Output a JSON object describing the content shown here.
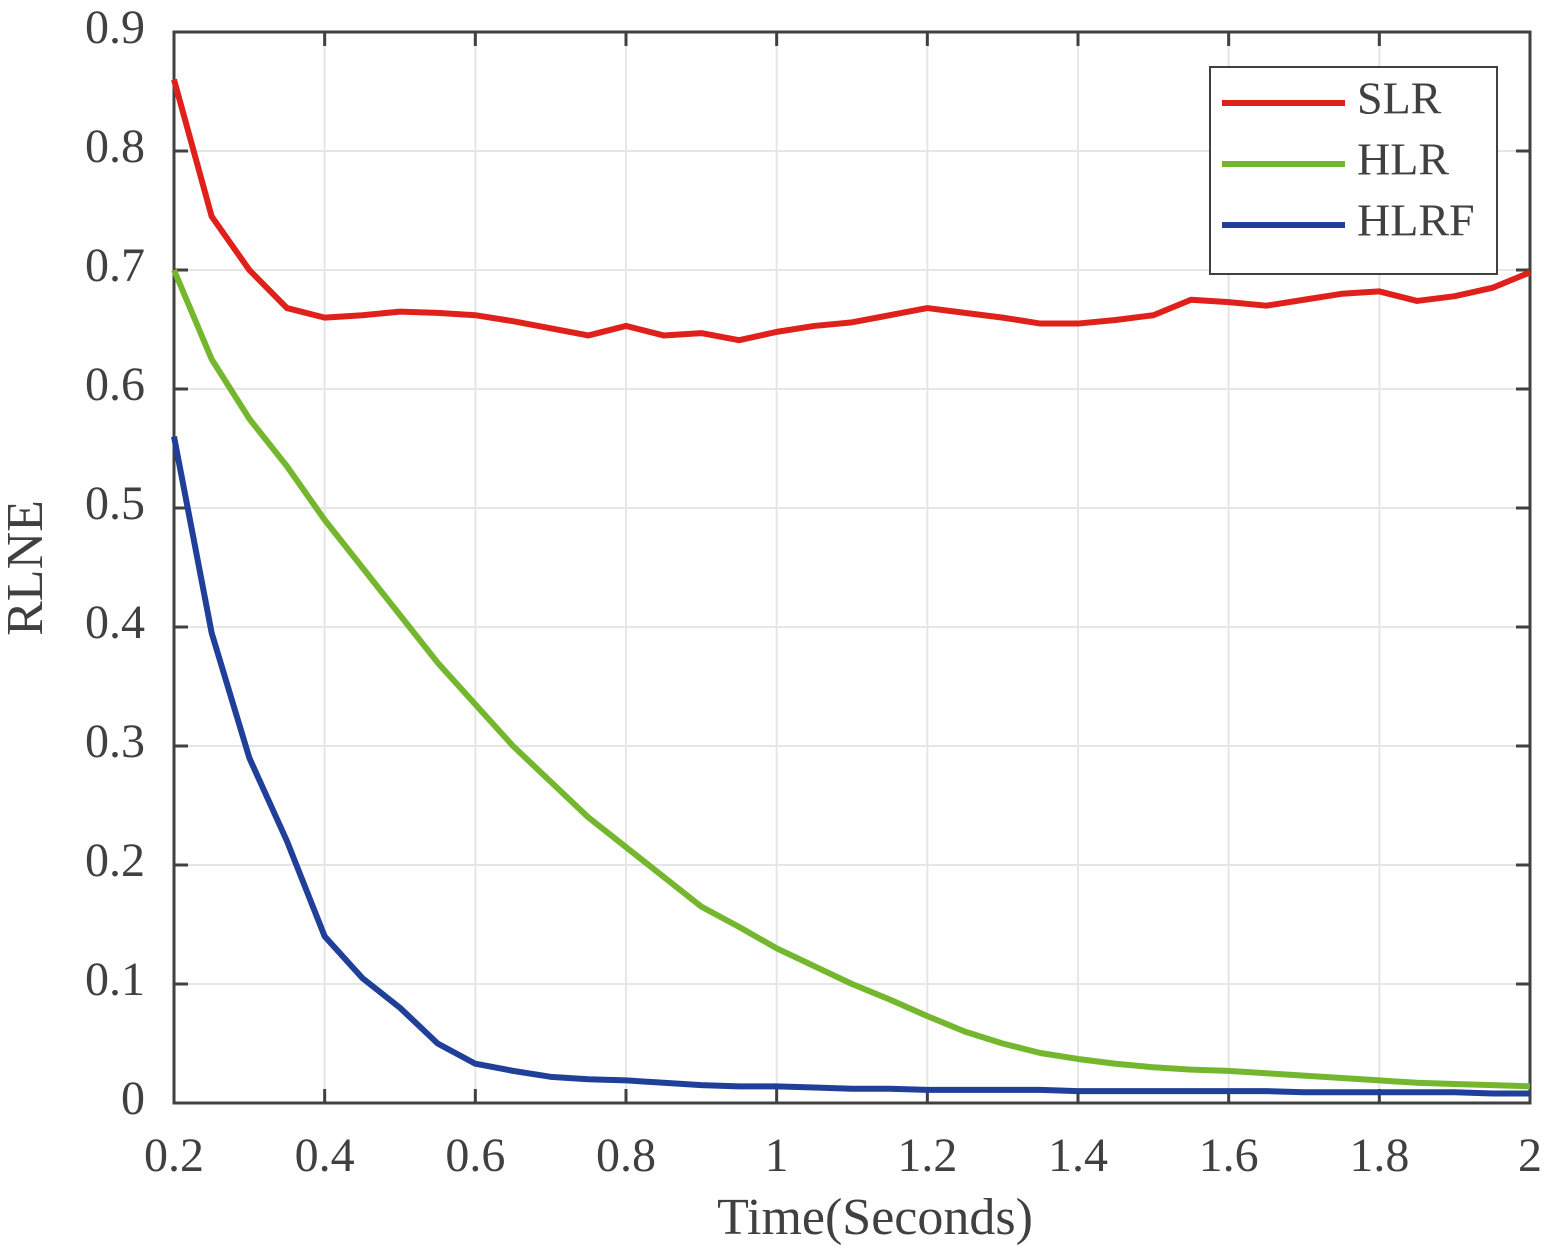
{
  "chart_data": {
    "type": "line",
    "xlabel": "Time(Seconds)",
    "ylabel": "RLNE",
    "x": [
      0.2,
      0.25,
      0.3,
      0.35,
      0.4,
      0.45,
      0.5,
      0.55,
      0.6,
      0.65,
      0.7,
      0.75,
      0.8,
      0.85,
      0.9,
      0.95,
      1.0,
      1.05,
      1.1,
      1.15,
      1.2,
      1.25,
      1.3,
      1.35,
      1.4,
      1.45,
      1.5,
      1.55,
      1.6,
      1.65,
      1.7,
      1.75,
      1.8,
      1.85,
      1.9,
      1.95,
      2.0
    ],
    "series": [
      {
        "name": "SLR",
        "color": "#e0201b",
        "values": [
          0.86,
          0.745,
          0.7,
          0.668,
          0.66,
          0.662,
          0.665,
          0.664,
          0.662,
          0.657,
          0.651,
          0.645,
          0.653,
          0.645,
          0.647,
          0.641,
          0.648,
          0.653,
          0.656,
          0.662,
          0.668,
          0.664,
          0.66,
          0.655,
          0.655,
          0.658,
          0.662,
          0.675,
          0.673,
          0.67,
          0.675,
          0.68,
          0.682,
          0.674,
          0.678,
          0.685,
          0.698
        ]
      },
      {
        "name": "HLR",
        "color": "#74b72e",
        "values": [
          0.7,
          0.625,
          0.575,
          0.535,
          0.49,
          0.45,
          0.41,
          0.37,
          0.335,
          0.3,
          0.27,
          0.24,
          0.215,
          0.19,
          0.165,
          0.148,
          0.13,
          0.115,
          0.1,
          0.087,
          0.073,
          0.06,
          0.05,
          0.042,
          0.037,
          0.033,
          0.03,
          0.028,
          0.027,
          0.025,
          0.023,
          0.021,
          0.019,
          0.017,
          0.016,
          0.015,
          0.014
        ]
      },
      {
        "name": "HLRF",
        "color": "#1f3f99",
        "values": [
          0.56,
          0.395,
          0.29,
          0.22,
          0.14,
          0.105,
          0.08,
          0.05,
          0.033,
          0.027,
          0.022,
          0.02,
          0.019,
          0.017,
          0.015,
          0.014,
          0.014,
          0.013,
          0.012,
          0.012,
          0.011,
          0.011,
          0.011,
          0.011,
          0.01,
          0.01,
          0.01,
          0.01,
          0.01,
          0.01,
          0.009,
          0.009,
          0.009,
          0.009,
          0.009,
          0.008,
          0.008
        ]
      }
    ],
    "xlim": [
      0.2,
      2
    ],
    "xticks": [
      0.2,
      0.4,
      0.6,
      0.8,
      1,
      1.2,
      1.4,
      1.6,
      1.8,
      2
    ],
    "ylim": [
      0,
      0.9
    ],
    "yticks": [
      0,
      0.1,
      0.2,
      0.3,
      0.4,
      0.5,
      0.6,
      0.7,
      0.8,
      0.9
    ],
    "grid": true,
    "legend": "upper right"
  }
}
